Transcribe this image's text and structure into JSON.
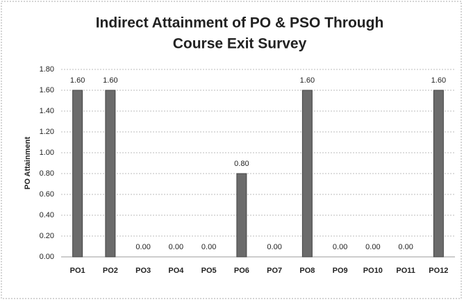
{
  "chart_data": {
    "type": "bar",
    "title": [
      "Indirect Attainment of PO & PSO Through",
      "Course Exit Survey"
    ],
    "y_label": "PO Attainment",
    "categories": [
      "PO1",
      "PO2",
      "PO3",
      "PO4",
      "PO5",
      "PO6",
      "PO7",
      "PO8",
      "PO9",
      "PO10",
      "PO11",
      "PO12"
    ],
    "values": [
      1.6,
      1.6,
      0,
      0,
      0,
      0.8,
      0,
      1.6,
      0,
      0,
      0,
      1.6
    ],
    "value_labels": [
      "1.60",
      "1.60",
      "0.00",
      "0.00",
      "0.00",
      "0.80",
      "0.00",
      "1.60",
      "0.00",
      "0.00",
      "0.00",
      "1.60"
    ],
    "color": "#6b6b6b",
    "ylim": [
      0,
      1.8
    ],
    "yticks": [
      {
        "value": 0,
        "label": "0.00"
      },
      {
        "value": 0.2,
        "label": "0.20"
      },
      {
        "value": 0.4,
        "label": "0.40"
      },
      {
        "value": 0.6,
        "label": "0.60"
      },
      {
        "value": 0.8,
        "label": "0.80"
      },
      {
        "value": 1.0,
        "label": "1.00"
      },
      {
        "value": 1.2,
        "label": "1.20"
      },
      {
        "value": 1.4,
        "label": "1.40"
      },
      {
        "value": 1.6,
        "label": "1.60"
      },
      {
        "value": 1.8,
        "label": "1.80"
      }
    ],
    "grid": true
  }
}
